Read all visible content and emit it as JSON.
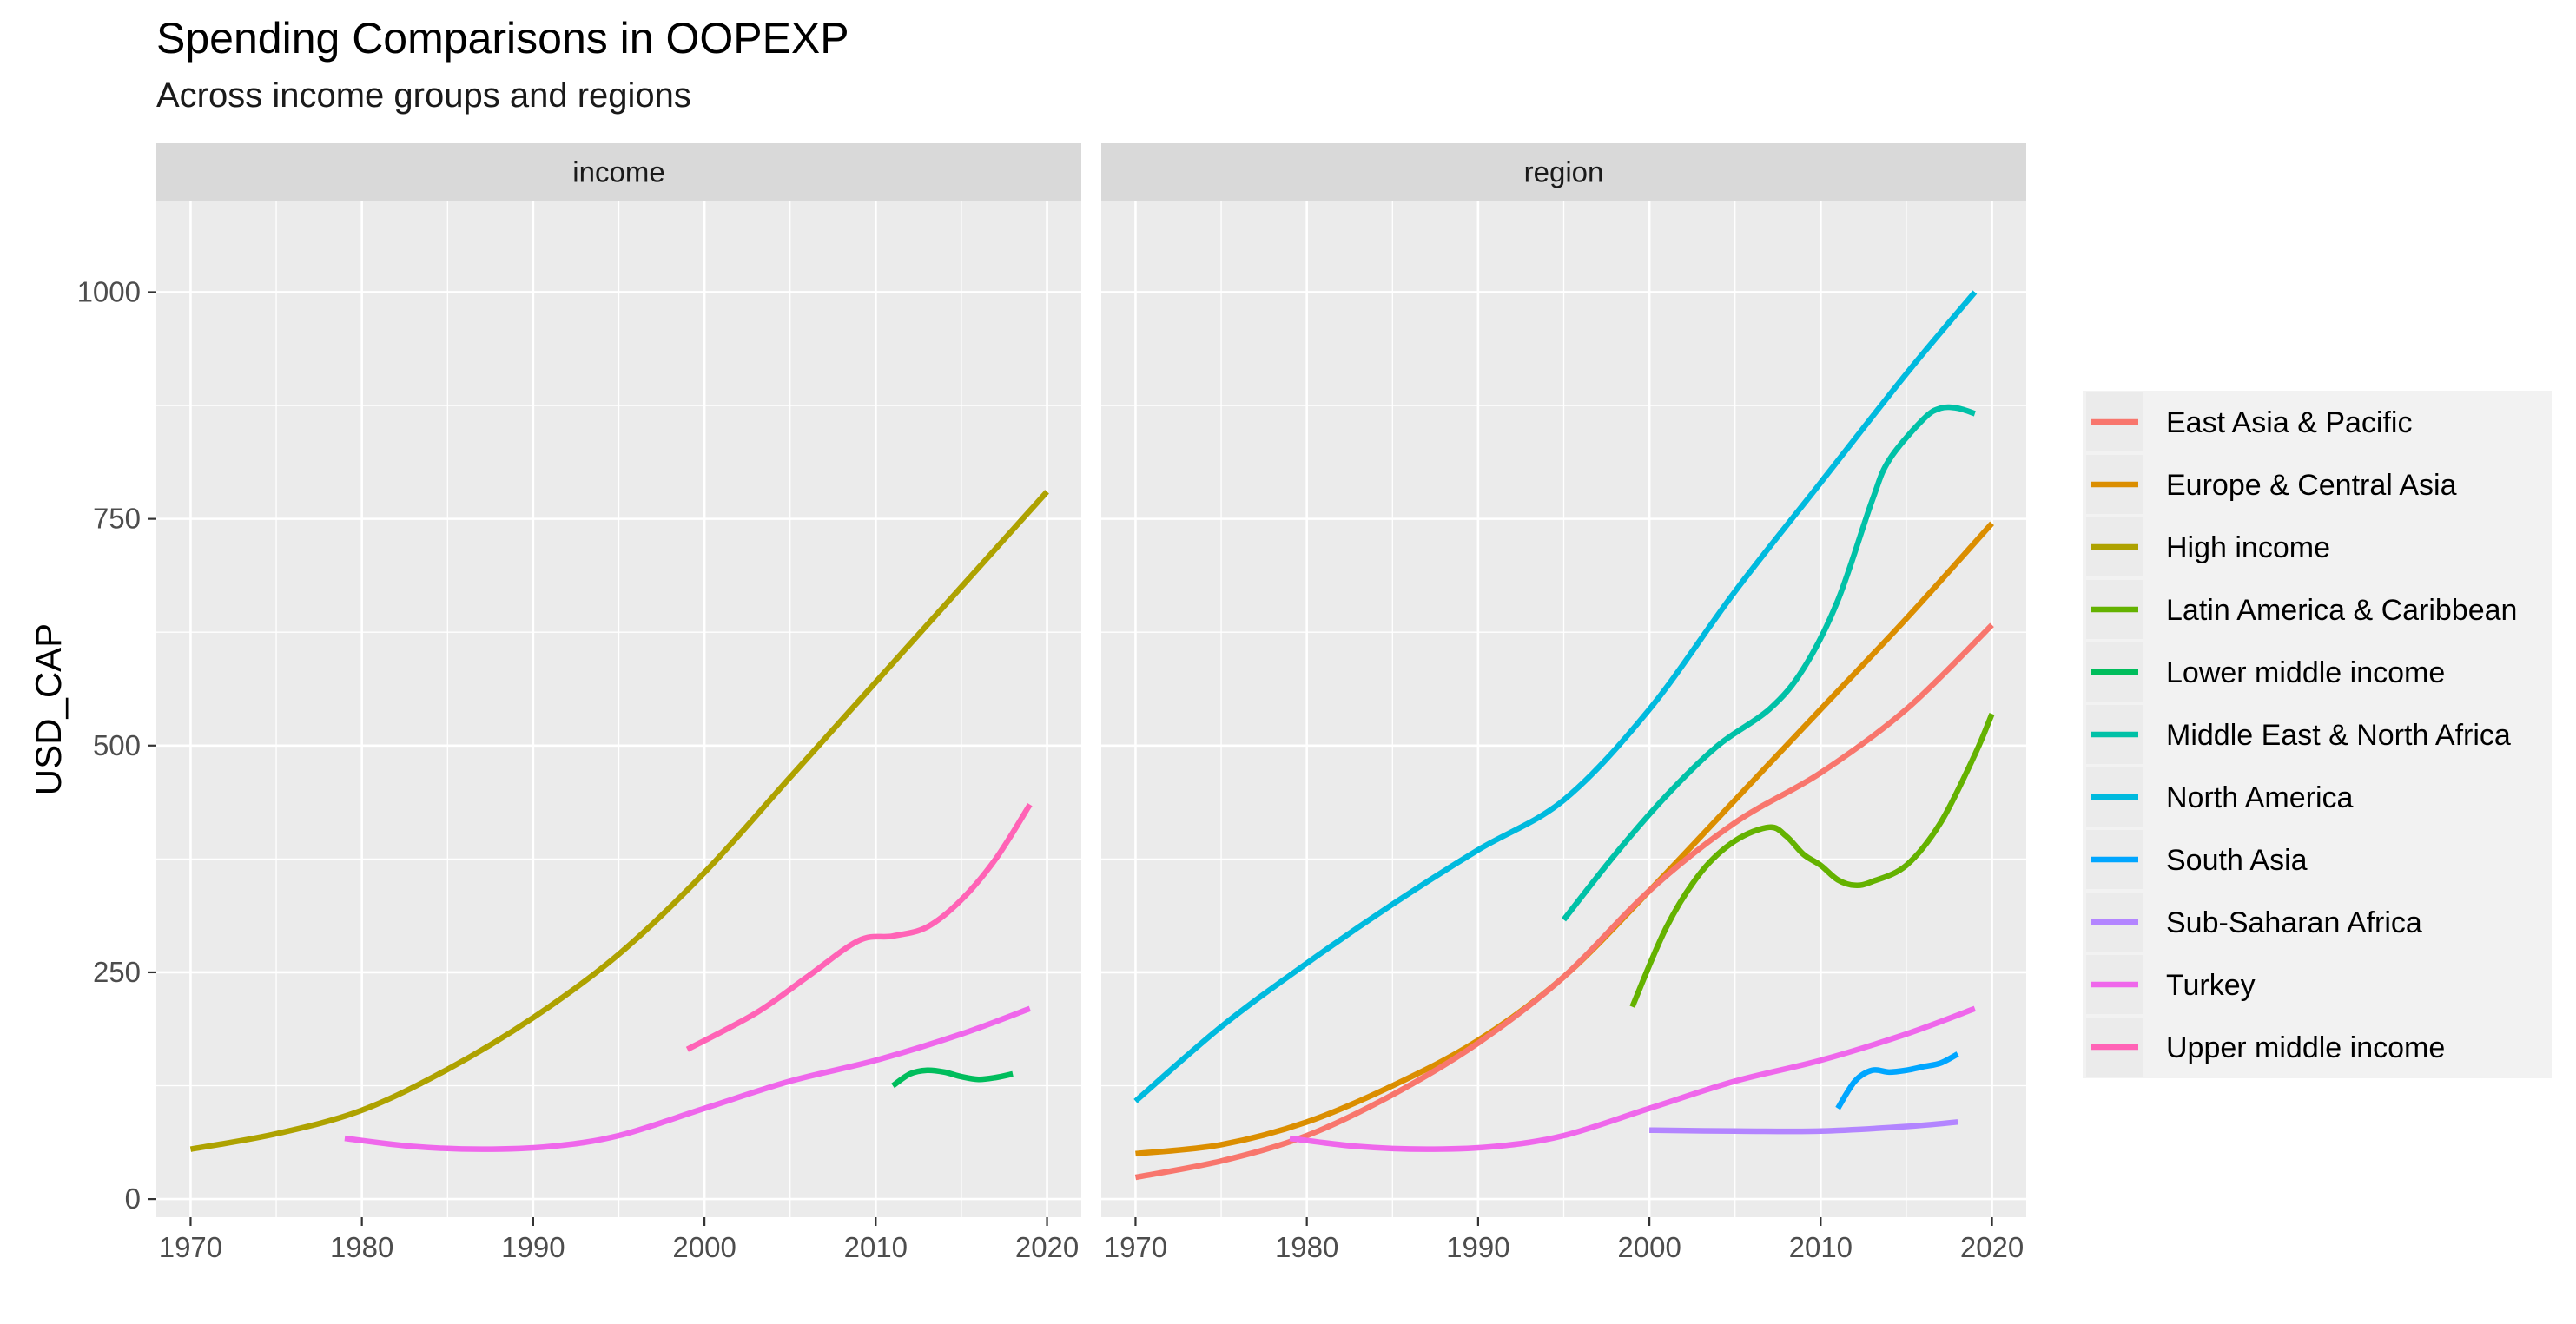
{
  "title": "Spending Comparisons in OOPEXP",
  "subtitle": "Across income groups and regions",
  "chart_data": {
    "type": "line",
    "title": "Spending Comparisons in OOPEXP",
    "subtitle": "Across income groups and regions",
    "xlabel": "",
    "ylabel": "USD_CAP",
    "xlim": [
      1968,
      2022
    ],
    "ylim": [
      -20,
      1100
    ],
    "x_ticks": [
      1970,
      1980,
      1990,
      2000,
      2010,
      2020
    ],
    "y_ticks": [
      0,
      250,
      500,
      750,
      1000
    ],
    "grid": true,
    "legend_position": "right",
    "panels": [
      {
        "label": "income",
        "series": [
          {
            "name": "High income",
            "x": [
              1970,
              1975,
              1980,
              1985,
              1990,
              1995,
              2000,
              2005,
              2010,
              2015,
              2020
            ],
            "y": [
              55,
              72,
              98,
              143,
              200,
              270,
              360,
              465,
              570,
              675,
              780
            ]
          },
          {
            "name": "Upper middle income",
            "x": [
              1999,
              2003,
              2006,
              2009,
              2011,
              2013,
              2015,
              2017,
              2019
            ],
            "y": [
              165,
              205,
              245,
              285,
              290,
              300,
              330,
              375,
              435
            ]
          },
          {
            "name": "Turkey",
            "x": [
              1979,
              1983,
              1987,
              1991,
              1995,
              2000,
              2005,
              2010,
              2015,
              2019
            ],
            "y": [
              67,
              58,
              55,
              58,
              70,
              100,
              130,
              153,
              182,
              210
            ]
          },
          {
            "name": "Lower middle income",
            "x": [
              2011,
              2012,
              2013,
              2014,
              2015,
              2016,
              2017,
              2018
            ],
            "y": [
              125,
              138,
              142,
              140,
              135,
              132,
              134,
              138
            ]
          }
        ]
      },
      {
        "label": "region",
        "series": [
          {
            "name": "North America",
            "x": [
              1970,
              1975,
              1980,
              1985,
              1990,
              1995,
              2000,
              2005,
              2010,
              2015,
              2019
            ],
            "y": [
              108,
              190,
              260,
              325,
              385,
              440,
              540,
              670,
              790,
              910,
              1000
            ]
          },
          {
            "name": "Middle East & North Africa",
            "x": [
              1995,
              1998,
              2001,
              2004,
              2007,
              2009,
              2011,
              2013,
              2014,
              2016,
              2017,
              2018,
              2019
            ],
            "y": [
              308,
              380,
              445,
              500,
              540,
              585,
              660,
              770,
              815,
              860,
              872,
              872,
              866
            ]
          },
          {
            "name": "Europe & Central Asia",
            "x": [
              1970,
              1975,
              1980,
              1985,
              1990,
              1995,
              2000,
              2005,
              2010,
              2015,
              2020
            ],
            "y": [
              50,
              60,
              85,
              125,
              175,
              245,
              340,
              440,
              540,
              640,
              745
            ]
          },
          {
            "name": "East Asia & Pacific",
            "x": [
              1970,
              1975,
              1980,
              1985,
              1990,
              1995,
              2000,
              2005,
              2010,
              2015,
              2020
            ],
            "y": [
              24,
              42,
              70,
              115,
              172,
              245,
              340,
              415,
              470,
              540,
              633
            ]
          },
          {
            "name": "Latin America & Caribbean",
            "x": [
              1999,
              2001,
              2003,
              2005,
              2007,
              2008,
              2009,
              2010,
              2011,
              2012,
              2013,
              2015,
              2017,
              2019,
              2020
            ],
            "y": [
              212,
              300,
              360,
              395,
              410,
              400,
              380,
              368,
              352,
              346,
              350,
              368,
              415,
              490,
              535
            ]
          },
          {
            "name": "Turkey",
            "x": [
              1979,
              1983,
              1987,
              1991,
              1995,
              2000,
              2005,
              2010,
              2015,
              2019
            ],
            "y": [
              67,
              58,
              55,
              58,
              70,
              100,
              130,
              153,
              182,
              210
            ]
          },
          {
            "name": "South Asia",
            "x": [
              2011,
              2012,
              2013,
              2014,
              2015,
              2016,
              2017,
              2018
            ],
            "y": [
              100,
              130,
              142,
              140,
              142,
              146,
              150,
              160
            ]
          },
          {
            "name": "Sub-Saharan Africa",
            "x": [
              2000,
              2005,
              2010,
              2015,
              2018
            ],
            "y": [
              76,
              75,
              75,
              80,
              85
            ]
          }
        ]
      }
    ],
    "legend": [
      {
        "name": "East Asia & Pacific",
        "color": "#F8766D"
      },
      {
        "name": "Europe & Central Asia",
        "color": "#DB8E00"
      },
      {
        "name": "High income",
        "color": "#AEA200"
      },
      {
        "name": "Latin America & Caribbean",
        "color": "#64B200"
      },
      {
        "name": "Lower middle income",
        "color": "#00BD5C"
      },
      {
        "name": "Middle East & North Africa",
        "color": "#00C1A7"
      },
      {
        "name": "North America",
        "color": "#00BADE"
      },
      {
        "name": "South Asia",
        "color": "#00A6FF"
      },
      {
        "name": "Sub-Saharan Africa",
        "color": "#B385FF"
      },
      {
        "name": "Turkey",
        "color": "#EF67EB"
      },
      {
        "name": "Upper middle income",
        "color": "#FF63B6"
      }
    ]
  }
}
